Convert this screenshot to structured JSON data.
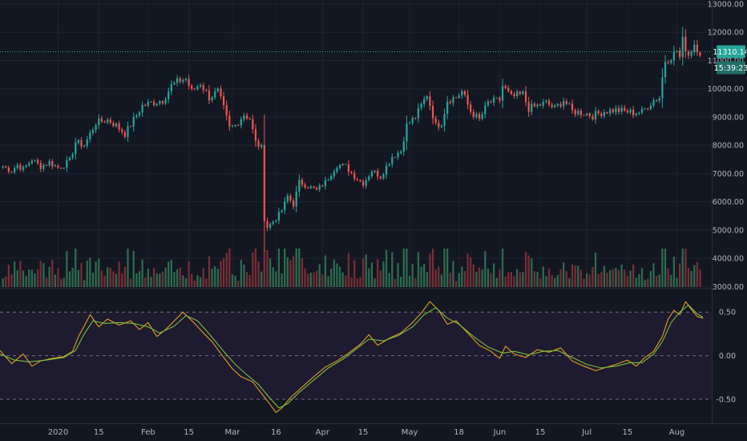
{
  "colors": {
    "background": "#131722",
    "grid": "#1f2330",
    "up": "#26a69a",
    "down": "#ef5350",
    "up_volume": "#2e6d4f",
    "down_volume": "#7a2e36",
    "price_line": "#26a69a",
    "osc_fast": "#e0a020",
    "osc_slow": "#7cbf3c",
    "osc_band": "#1e1a30",
    "axis_text": "#b2b5be"
  },
  "chart_data": [
    {
      "type": "candlestick",
      "title": "",
      "x_range": [
        "2019-12-12",
        "2020-08-13"
      ],
      "y_ticks": [
        "13000.00",
        "12000.00",
        "11000.00",
        "10000.00",
        "9000.00",
        "8000.00",
        "7000.00",
        "6000.00",
        "5000.00",
        "4000.00",
        "3000.00"
      ],
      "ylim": [
        2980,
        13000
      ],
      "current_price": "11310.14",
      "countdown": "15:39:23",
      "grid": true,
      "close_path": [
        [
          "2019-12-13",
          7250
        ],
        [
          "2019-12-16",
          7100
        ],
        [
          "2019-12-18",
          7300
        ],
        [
          "2019-12-20",
          7150
        ],
        [
          "2019-12-23",
          7500
        ],
        [
          "2019-12-26",
          7250
        ],
        [
          "2019-12-29",
          7400
        ],
        [
          "2020-01-01",
          7200
        ],
        [
          "2020-01-03",
          7300
        ],
        [
          "2020-01-05",
          7450
        ],
        [
          "2020-01-07",
          8100
        ],
        [
          "2020-01-10",
          8000
        ],
        [
          "2020-01-14",
          8800
        ],
        [
          "2020-01-18",
          8900
        ],
        [
          "2020-01-21",
          8700
        ],
        [
          "2020-01-24",
          8400
        ],
        [
          "2020-01-27",
          8900
        ],
        [
          "2020-01-30",
          9400
        ],
        [
          "2020-02-02",
          9500
        ],
        [
          "2020-02-06",
          9600
        ],
        [
          "2020-02-09",
          10100
        ],
        [
          "2020-02-12",
          10300
        ],
        [
          "2020-02-14",
          10350
        ],
        [
          "2020-02-16",
          9900
        ],
        [
          "2020-02-19",
          10200
        ],
        [
          "2020-02-22",
          9700
        ],
        [
          "2020-02-25",
          9900
        ],
        [
          "2020-02-27",
          9300
        ],
        [
          "2020-02-29",
          8600
        ],
        [
          "2020-03-02",
          8700
        ],
        [
          "2020-03-05",
          9100
        ],
        [
          "2020-03-07",
          8950
        ],
        [
          "2020-03-09",
          8100
        ],
        [
          "2020-03-11",
          7900
        ],
        [
          "2020-03-12",
          5400
        ],
        [
          "2020-03-13",
          5100
        ],
        [
          "2020-03-16",
          5400
        ],
        [
          "2020-03-18",
          5700
        ],
        [
          "2020-03-20",
          6200
        ],
        [
          "2020-03-22",
          5900
        ],
        [
          "2020-03-24",
          6700
        ],
        [
          "2020-03-26",
          6600
        ],
        [
          "2020-03-30",
          6400
        ],
        [
          "2020-04-02",
          6700
        ],
        [
          "2020-04-06",
          7300
        ],
        [
          "2020-04-09",
          7250
        ],
        [
          "2020-04-12",
          6900
        ],
        [
          "2020-04-15",
          6650
        ],
        [
          "2020-04-18",
          7100
        ],
        [
          "2020-04-21",
          6900
        ],
        [
          "2020-04-25",
          7600
        ],
        [
          "2020-04-28",
          7800
        ],
        [
          "2020-04-30",
          8700
        ],
        [
          "2020-05-03",
          9000
        ],
        [
          "2020-05-07",
          9800
        ],
        [
          "2020-05-10",
          8700
        ],
        [
          "2020-05-12",
          8800
        ],
        [
          "2020-05-14",
          9600
        ],
        [
          "2020-05-17",
          9700
        ],
        [
          "2020-05-19",
          9900
        ],
        [
          "2020-05-22",
          9200
        ],
        [
          "2020-05-25",
          8900
        ],
        [
          "2020-05-28",
          9500
        ],
        [
          "2020-06-01",
          9600
        ],
        [
          "2020-06-02",
          10100
        ],
        [
          "2020-06-05",
          9700
        ],
        [
          "2020-06-09",
          9800
        ],
        [
          "2020-06-11",
          9300
        ],
        [
          "2020-06-14",
          9400
        ],
        [
          "2020-06-17",
          9500
        ],
        [
          "2020-06-20",
          9300
        ],
        [
          "2020-06-23",
          9600
        ],
        [
          "2020-06-26",
          9200
        ],
        [
          "2020-06-30",
          9150
        ],
        [
          "2020-07-03",
          9050
        ],
        [
          "2020-07-07",
          9200
        ],
        [
          "2020-07-11",
          9250
        ],
        [
          "2020-07-14",
          9200
        ],
        [
          "2020-07-17",
          9150
        ],
        [
          "2020-07-20",
          9180
        ],
        [
          "2020-07-22",
          9400
        ],
        [
          "2020-07-24",
          9600
        ],
        [
          "2020-07-26",
          9700
        ],
        [
          "2020-07-27",
          10400
        ],
        [
          "2020-07-28",
          11000
        ],
        [
          "2020-07-30",
          11150
        ],
        [
          "2020-08-01",
          11350
        ],
        [
          "2020-08-02",
          11100
        ],
        [
          "2020-08-03",
          11700
        ],
        [
          "2020-08-05",
          11200
        ],
        [
          "2020-08-07",
          11600
        ],
        [
          "2020-08-09",
          11300
        ]
      ]
    },
    {
      "type": "line",
      "title": "",
      "x_range": [
        "2019-12-12",
        "2020-08-13"
      ],
      "ylim": [
        -0.72,
        0.75
      ],
      "y_ticks": [
        "0.50",
        "0.00",
        "-0.50"
      ],
      "band": [
        -0.5,
        0.5
      ],
      "series": [
        {
          "points": [
            [
              "2019-12-12",
              0.06
            ],
            [
              "2019-12-16",
              -0.09
            ],
            [
              "2019-12-20",
              0.02
            ],
            [
              "2019-12-23",
              -0.12
            ],
            [
              "2019-12-26",
              -0.06
            ],
            [
              "2019-12-30",
              -0.03
            ],
            [
              "2020-01-03",
              -0.01
            ],
            [
              "2020-01-06",
              0.05
            ],
            [
              "2020-01-08",
              0.22
            ],
            [
              "2020-01-10",
              0.34
            ],
            [
              "2020-01-12",
              0.47
            ],
            [
              "2020-01-15",
              0.33
            ],
            [
              "2020-01-18",
              0.42
            ],
            [
              "2020-01-22",
              0.35
            ],
            [
              "2020-01-26",
              0.4
            ],
            [
              "2020-01-29",
              0.3
            ],
            [
              "2020-02-01",
              0.38
            ],
            [
              "2020-02-04",
              0.22
            ],
            [
              "2020-02-07",
              0.3
            ],
            [
              "2020-02-10",
              0.4
            ],
            [
              "2020-02-13",
              0.5
            ],
            [
              "2020-02-17",
              0.37
            ],
            [
              "2020-02-20",
              0.26
            ],
            [
              "2020-02-23",
              0.16
            ],
            [
              "2020-02-27",
              -0.02
            ],
            [
              "2020-03-01",
              -0.15
            ],
            [
              "2020-03-04",
              -0.24
            ],
            [
              "2020-03-08",
              -0.3
            ],
            [
              "2020-03-11",
              -0.43
            ],
            [
              "2020-03-14",
              -0.56
            ],
            [
              "2020-03-16",
              -0.65
            ],
            [
              "2020-03-18",
              -0.6
            ],
            [
              "2020-03-21",
              -0.48
            ],
            [
              "2020-03-25",
              -0.36
            ],
            [
              "2020-03-29",
              -0.24
            ],
            [
              "2020-04-02",
              -0.13
            ],
            [
              "2020-04-06",
              -0.06
            ],
            [
              "2020-04-10",
              0.03
            ],
            [
              "2020-04-14",
              0.13
            ],
            [
              "2020-04-17",
              0.24
            ],
            [
              "2020-04-20",
              0.12
            ],
            [
              "2020-04-24",
              0.2
            ],
            [
              "2020-04-28",
              0.26
            ],
            [
              "2020-05-02",
              0.38
            ],
            [
              "2020-05-05",
              0.49
            ],
            [
              "2020-05-08",
              0.62
            ],
            [
              "2020-05-11",
              0.52
            ],
            [
              "2020-05-14",
              0.36
            ],
            [
              "2020-05-17",
              0.4
            ],
            [
              "2020-05-21",
              0.26
            ],
            [
              "2020-05-25",
              0.12
            ],
            [
              "2020-05-29",
              0.05
            ],
            [
              "2020-06-01",
              -0.03
            ],
            [
              "2020-06-03",
              0.11
            ],
            [
              "2020-06-06",
              0.02
            ],
            [
              "2020-06-10",
              -0.02
            ],
            [
              "2020-06-14",
              0.07
            ],
            [
              "2020-06-18",
              0.04
            ],
            [
              "2020-06-22",
              0.09
            ],
            [
              "2020-06-26",
              -0.06
            ],
            [
              "2020-06-30",
              -0.12
            ],
            [
              "2020-07-04",
              -0.17
            ],
            [
              "2020-07-07",
              -0.14
            ],
            [
              "2020-07-11",
              -0.1
            ],
            [
              "2020-07-15",
              -0.05
            ],
            [
              "2020-07-18",
              -0.12
            ],
            [
              "2020-07-21",
              -0.02
            ],
            [
              "2020-07-24",
              0.05
            ],
            [
              "2020-07-27",
              0.22
            ],
            [
              "2020-07-29",
              0.42
            ],
            [
              "2020-07-31",
              0.52
            ],
            [
              "2020-08-02",
              0.47
            ],
            [
              "2020-08-04",
              0.62
            ],
            [
              "2020-08-06",
              0.53
            ],
            [
              "2020-08-08",
              0.45
            ],
            [
              "2020-08-10",
              0.43
            ]
          ]
        },
        {
          "points": [
            [
              "2019-12-12",
              0.02
            ],
            [
              "2019-12-17",
              -0.05
            ],
            [
              "2019-12-22",
              -0.07
            ],
            [
              "2019-12-28",
              -0.05
            ],
            [
              "2020-01-03",
              -0.02
            ],
            [
              "2020-01-07",
              0.06
            ],
            [
              "2020-01-10",
              0.25
            ],
            [
              "2020-01-13",
              0.4
            ],
            [
              "2020-01-17",
              0.37
            ],
            [
              "2020-01-22",
              0.38
            ],
            [
              "2020-01-27",
              0.37
            ],
            [
              "2020-02-01",
              0.33
            ],
            [
              "2020-02-05",
              0.26
            ],
            [
              "2020-02-10",
              0.34
            ],
            [
              "2020-02-14",
              0.46
            ],
            [
              "2020-02-18",
              0.4
            ],
            [
              "2020-02-22",
              0.25
            ],
            [
              "2020-02-27",
              0.05
            ],
            [
              "2020-03-02",
              -0.1
            ],
            [
              "2020-03-06",
              -0.22
            ],
            [
              "2020-03-10",
              -0.33
            ],
            [
              "2020-03-14",
              -0.49
            ],
            [
              "2020-03-17",
              -0.6
            ],
            [
              "2020-03-20",
              -0.55
            ],
            [
              "2020-03-24",
              -0.42
            ],
            [
              "2020-03-29",
              -0.28
            ],
            [
              "2020-04-03",
              -0.14
            ],
            [
              "2020-04-08",
              -0.04
            ],
            [
              "2020-04-12",
              0.06
            ],
            [
              "2020-04-17",
              0.19
            ],
            [
              "2020-04-22",
              0.17
            ],
            [
              "2020-04-27",
              0.23
            ],
            [
              "2020-05-02",
              0.33
            ],
            [
              "2020-05-06",
              0.47
            ],
            [
              "2020-05-10",
              0.55
            ],
            [
              "2020-05-14",
              0.43
            ],
            [
              "2020-05-18",
              0.36
            ],
            [
              "2020-05-23",
              0.22
            ],
            [
              "2020-05-28",
              0.1
            ],
            [
              "2020-06-02",
              0.03
            ],
            [
              "2020-06-06",
              0.05
            ],
            [
              "2020-06-11",
              0.01
            ],
            [
              "2020-06-16",
              0.05
            ],
            [
              "2020-06-21",
              0.06
            ],
            [
              "2020-06-26",
              -0.02
            ],
            [
              "2020-07-01",
              -0.1
            ],
            [
              "2020-07-06",
              -0.14
            ],
            [
              "2020-07-11",
              -0.12
            ],
            [
              "2020-07-16",
              -0.08
            ],
            [
              "2020-07-20",
              -0.08
            ],
            [
              "2020-07-24",
              0.02
            ],
            [
              "2020-07-27",
              0.16
            ],
            [
              "2020-07-30",
              0.38
            ],
            [
              "2020-08-02",
              0.5
            ],
            [
              "2020-08-05",
              0.58
            ],
            [
              "2020-08-08",
              0.48
            ],
            [
              "2020-08-10",
              0.44
            ]
          ]
        }
      ]
    }
  ],
  "time_axis": {
    "labels": [
      {
        "text": "2020",
        "date": "2020-01-01"
      },
      {
        "text": "15",
        "date": "2020-01-15"
      },
      {
        "text": "Feb",
        "date": "2020-02-01"
      },
      {
        "text": "15",
        "date": "2020-02-15"
      },
      {
        "text": "Mar",
        "date": "2020-03-01"
      },
      {
        "text": "16",
        "date": "2020-03-16"
      },
      {
        "text": "Apr",
        "date": "2020-04-01"
      },
      {
        "text": "15",
        "date": "2020-04-15"
      },
      {
        "text": "May",
        "date": "2020-05-01"
      },
      {
        "text": "18",
        "date": "2020-05-18"
      },
      {
        "text": "Jun",
        "date": "2020-06-01"
      },
      {
        "text": "15",
        "date": "2020-06-15"
      },
      {
        "text": "Jul",
        "date": "2020-07-01"
      },
      {
        "text": "15",
        "date": "2020-07-15"
      },
      {
        "text": "Aug",
        "date": "2020-08-01"
      }
    ]
  }
}
